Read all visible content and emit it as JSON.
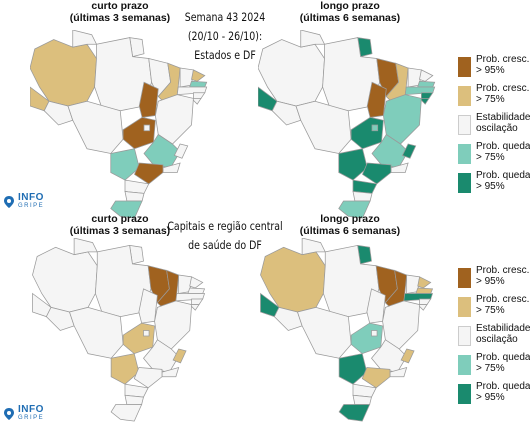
{
  "top_left_header": {
    "line1": "curto prazo",
    "line2": "(últimas 3 semanas)"
  },
  "top_right_header": {
    "line1": "longo prazo",
    "line2": "(últimas 6 semanas)"
  },
  "bottom_left_header": {
    "line1": "curto prazo",
    "line2": "(últimas 3 semanas)"
  },
  "bottom_right_header": {
    "line1": "longo prazo",
    "line2": "(últimas 6 semanas)"
  },
  "top_title": {
    "line1": "Semana 43 2024",
    "line2": "(20/10 - 26/10):",
    "line3": "Estados e DF"
  },
  "bottom_title": {
    "line1": "Capitais e região central",
    "line2": "de saúde do DF"
  },
  "legend": [
    {
      "line1": "Prob. cresc.",
      "line2": "> 95%",
      "color": "#a0621f"
    },
    {
      "line1": "Prob. cresc.",
      "line2": "> 75%",
      "color": "#dcbf7d"
    },
    {
      "line1": "Estabilidade./",
      "line2": "oscilação",
      "color": "#f5f5f5"
    },
    {
      "line1": "Prob. queda",
      "line2": "> 75%",
      "color": "#7fcdbb"
    },
    {
      "line1": "Prob. queda",
      "line2": "> 95%",
      "color": "#1a8a6e"
    }
  ],
  "logo": {
    "main": "INFO",
    "sub": "GRIPE"
  },
  "map_colors": {
    "up95": "#a0621f",
    "up75": "#dcbf7d",
    "stable": "#f5f5f5",
    "down75": "#7fcdbb",
    "down95": "#1a8a6e",
    "border": "#9a9a9a"
  }
}
